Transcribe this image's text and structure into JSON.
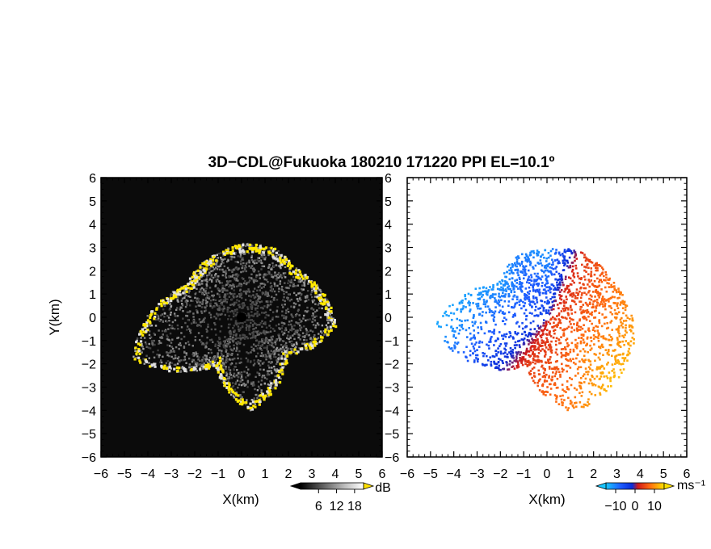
{
  "chart_data": [
    {
      "type": "heatmap",
      "title": "3D−CDL@Fukuoka 180210 171220 PPI EL=10.1º",
      "xlabel": "X(km)",
      "ylabel": "Y(km)",
      "xlim": [
        -6,
        6
      ],
      "ylim": [
        -6,
        6
      ],
      "x_ticks": [
        "−6",
        "−5",
        "−4",
        "−3",
        "−2",
        "−1",
        "0",
        "1",
        "2",
        "3",
        "4",
        "5",
        "6"
      ],
      "y_ticks": [
        "6",
        "5",
        "4",
        "3",
        "2",
        "1",
        "0",
        "−1",
        "−2",
        "−3",
        "−4",
        "−5",
        "−6"
      ],
      "colorbar": {
        "unit": "dB",
        "ticks": [
          "6",
          "12",
          "18"
        ],
        "range": [
          0,
          21
        ]
      },
      "echo_ring": [
        {
          "azimuth_deg": 0,
          "range_km": 3.2,
          "value_db": 18
        },
        {
          "azimuth_deg": 25,
          "range_km": 3.3,
          "value_db": 17
        },
        {
          "azimuth_deg": 45,
          "range_km": 3.1,
          "value_db": 18
        },
        {
          "azimuth_deg": 70,
          "range_km": 3.6,
          "value_db": 19
        },
        {
          "azimuth_deg": 95,
          "range_km": 4.0,
          "value_db": 16
        },
        {
          "azimuth_deg": 130,
          "range_km": 2.5,
          "value_db": 18
        },
        {
          "azimuth_deg": 175,
          "range_km": 4.0,
          "value_db": 17
        },
        {
          "azimuth_deg": 210,
          "range_km": 2.3,
          "value_db": 18
        },
        {
          "azimuth_deg": 250,
          "range_km": 5.0,
          "value_db": 15
        },
        {
          "azimuth_deg": 300,
          "range_km": 2.8,
          "value_db": 16
        },
        {
          "azimuth_deg": 340,
          "range_km": 3.0,
          "value_db": 18
        }
      ]
    },
    {
      "type": "heatmap",
      "xlabel": "X(km)",
      "xlim": [
        -6,
        6
      ],
      "ylim": [
        -6,
        6
      ],
      "x_ticks": [
        "−6",
        "−5",
        "−4",
        "−3",
        "−2",
        "−1",
        "0",
        "1",
        "2",
        "3",
        "4",
        "5",
        "6"
      ],
      "colorbar": {
        "unit": "ms⁻¹",
        "ticks": [
          "−10",
          "0",
          "10"
        ],
        "range": [
          -15,
          15
        ]
      },
      "velocity_field": [
        {
          "azimuth_deg": 0,
          "range_km": 3.0,
          "value_ms": -12
        },
        {
          "azimuth_deg": 30,
          "range_km": 3.2,
          "value_ms": 4
        },
        {
          "azimuth_deg": 60,
          "range_km": 3.2,
          "value_ms": 8
        },
        {
          "azimuth_deg": 100,
          "range_km": 3.8,
          "value_ms": 11
        },
        {
          "azimuth_deg": 135,
          "range_km": 4.0,
          "value_ms": 13
        },
        {
          "azimuth_deg": 165,
          "range_km": 4.2,
          "value_ms": 9
        },
        {
          "azimuth_deg": 205,
          "range_km": 2.2,
          "value_ms": 4
        },
        {
          "azimuth_deg": 265,
          "range_km": 5.0,
          "value_ms": -13
        },
        {
          "azimuth_deg": 305,
          "range_km": 2.6,
          "value_ms": -12
        },
        {
          "azimuth_deg": 335,
          "range_km": 3.0,
          "value_ms": -10
        }
      ]
    }
  ]
}
